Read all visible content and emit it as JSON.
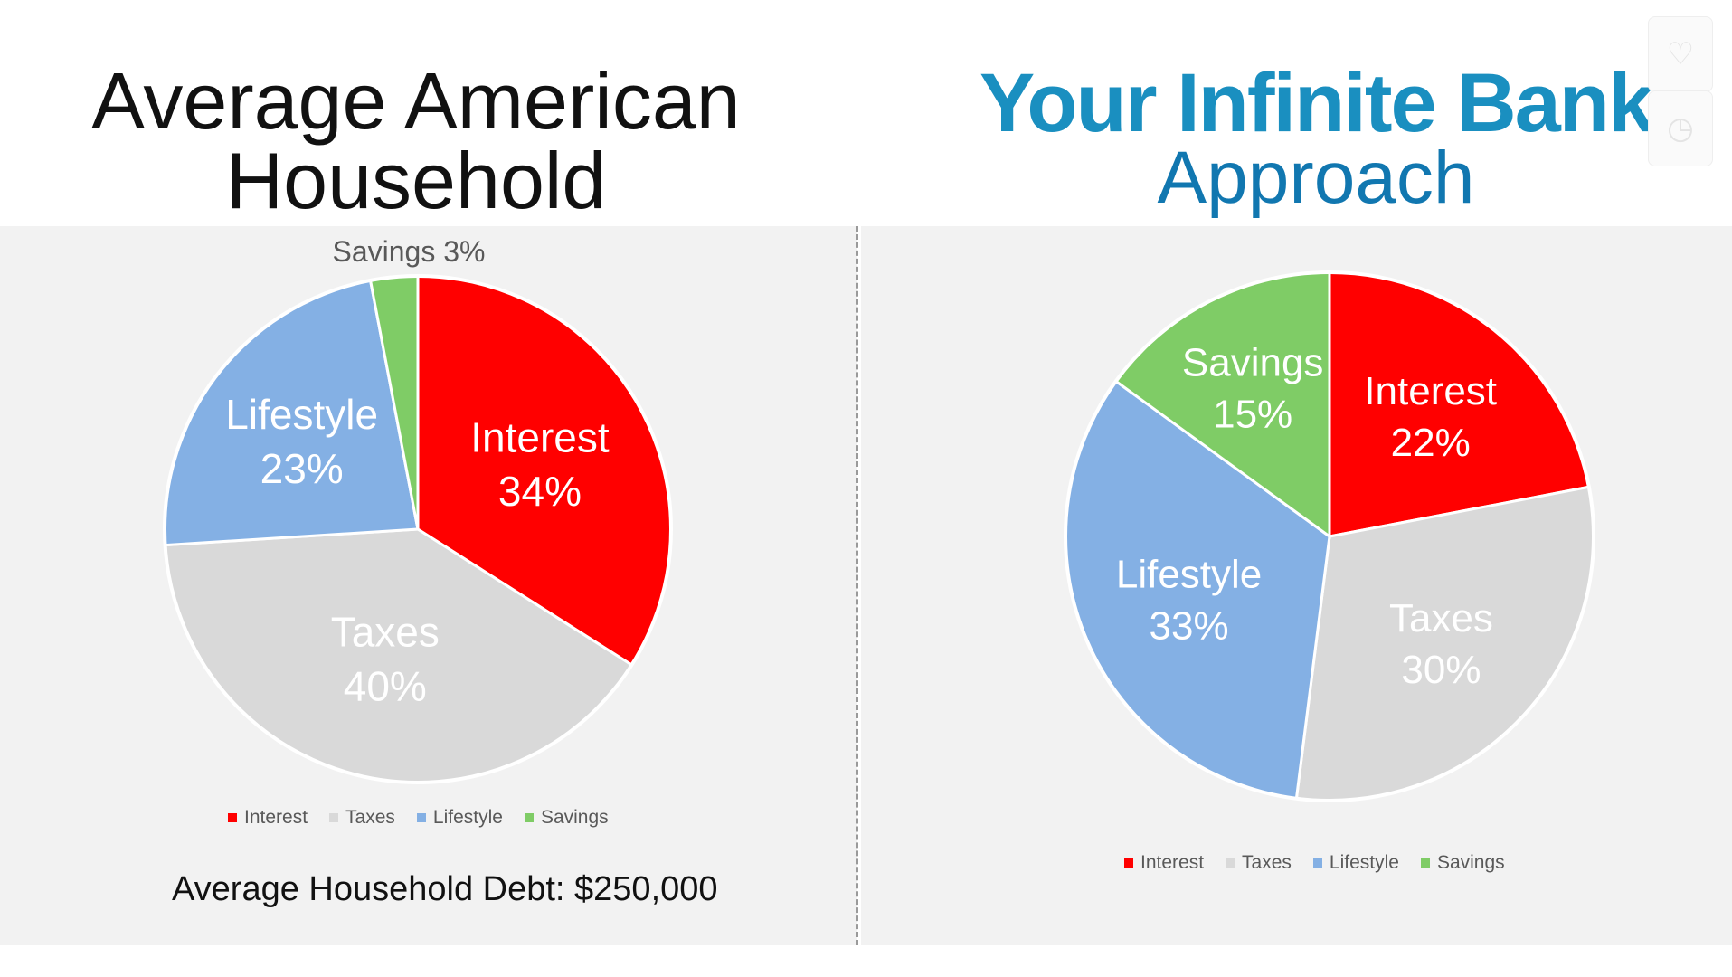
{
  "left_title": {
    "line1": "Average American",
    "line2": "Household"
  },
  "right_title": {
    "line1": "Your Infinite Bank",
    "line2": "Approach"
  },
  "left_note": "Average Household Debt: $250,000",
  "colors": {
    "Interest": "#ff0000",
    "Taxes": "#d9d9d9",
    "Lifestyle": "#84b0e4",
    "Savings": "#7fcc66"
  },
  "icons": [
    "heart-icon",
    "clock-icon"
  ],
  "chart_data": [
    {
      "type": "pie",
      "title": "Average American Household",
      "categories": [
        "Interest",
        "Taxes",
        "Lifestyle",
        "Savings"
      ],
      "values": [
        34,
        40,
        23,
        3
      ],
      "labels": [
        "34%",
        "40%",
        "23%",
        "3%"
      ],
      "savings_label": "Savings 3%",
      "legend": [
        "Interest",
        "Taxes",
        "Lifestyle",
        "Savings"
      ],
      "legend_position": "bottom"
    },
    {
      "type": "pie",
      "title": "Your Infinite Bank Approach",
      "categories": [
        "Interest",
        "Taxes",
        "Lifestyle",
        "Savings"
      ],
      "values": [
        22,
        30,
        33,
        15
      ],
      "labels": [
        "22%",
        "30%",
        "33%",
        "15%"
      ],
      "legend": [
        "Interest",
        "Taxes",
        "Lifestyle",
        "Savings"
      ],
      "legend_position": "bottom"
    }
  ]
}
